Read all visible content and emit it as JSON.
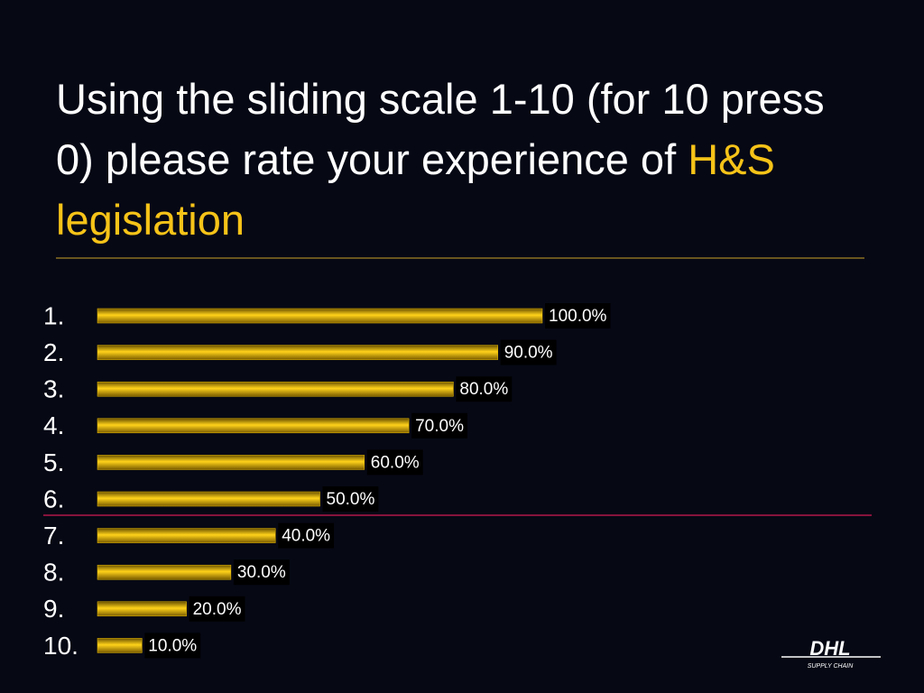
{
  "chart_data": {
    "type": "bar",
    "orientation": "horizontal",
    "title": "Using the sliding scale 1-10 (for 10 press 0) please rate your experience of",
    "title_highlight": "H&S legislation",
    "categories": [
      "1.",
      "2.",
      "3.",
      "4.",
      "5.",
      "6.",
      "7.",
      "8.",
      "9.",
      "10."
    ],
    "values": [
      100,
      90,
      80,
      70,
      60,
      50,
      40,
      30,
      20,
      10
    ],
    "value_labels": [
      "100.0%",
      "90.0%",
      "80.0%",
      "70.0%",
      "60.0%",
      "50.0%",
      "40.0%",
      "30.0%",
      "20.0%",
      "10.0%"
    ],
    "color": "#f2c200"
  },
  "logo": {
    "name": "DHL",
    "subtitle": "SUPPLY CHAIN"
  }
}
